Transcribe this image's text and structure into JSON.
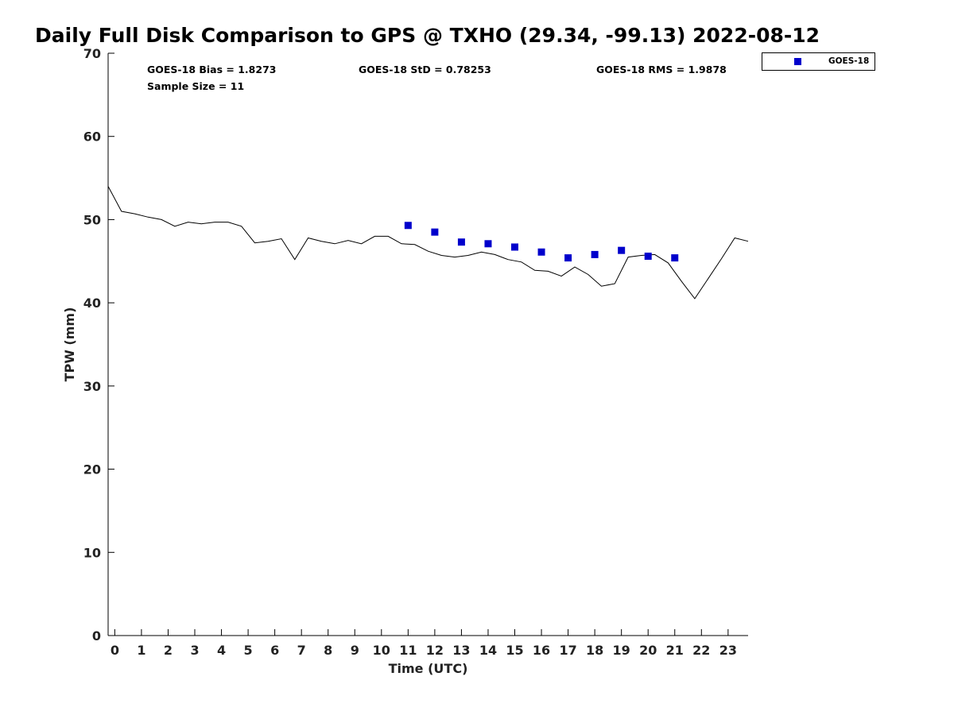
{
  "chart_data": {
    "type": "line",
    "title": "Daily Full Disk Comparison to GPS @ TXHO (29.34, -99.13) 2022-08-12",
    "xlabel": "Time (UTC)",
    "ylabel": "TPW (mm)",
    "xlim": [
      -0.25,
      23.75
    ],
    "ylim": [
      0,
      70
    ],
    "x_ticks": [
      "0",
      "1",
      "2",
      "3",
      "4",
      "5",
      "6",
      "7",
      "8",
      "9",
      "10",
      "11",
      "12",
      "13",
      "14",
      "15",
      "16",
      "17",
      "18",
      "19",
      "20",
      "21",
      "22",
      "23"
    ],
    "y_ticks": [
      "0",
      "10",
      "20",
      "30",
      "40",
      "50",
      "60",
      "70"
    ],
    "grid": false,
    "legend_position": "top-right outside",
    "stats": {
      "bias": "GOES-18 Bias = 1.8273",
      "std": "GOES-18 StD = 0.78253",
      "rms": "GOES-18 RMS = 1.9878",
      "sample": "Sample Size = 11"
    },
    "series": [
      {
        "style": "line",
        "color": "#000000",
        "x": [
          -0.25,
          0.25,
          0.75,
          1.25,
          1.75,
          2.25,
          2.75,
          3.25,
          3.75,
          4.25,
          4.75,
          5.25,
          5.75,
          6.25,
          6.75,
          7.25,
          7.75,
          8.25,
          8.75,
          9.25,
          9.75,
          10.25,
          10.75,
          11.25,
          11.75,
          12.25,
          12.75,
          13.25,
          13.75,
          14.25,
          14.75,
          15.25,
          15.75,
          16.25,
          16.75,
          17.25,
          17.75,
          18.25,
          18.75,
          19.25,
          19.75,
          20.25,
          20.75,
          21.25,
          21.75,
          22.25,
          22.75,
          23.25,
          23.75
        ],
        "y": [
          54.0,
          51.0,
          50.7,
          50.3,
          50.0,
          49.2,
          49.7,
          49.5,
          49.7,
          49.7,
          49.2,
          47.2,
          47.4,
          47.7,
          45.2,
          47.8,
          47.4,
          47.1,
          47.5,
          47.1,
          48.0,
          48.0,
          47.1,
          47.0,
          46.2,
          45.7,
          45.5,
          45.7,
          46.1,
          45.8,
          45.2,
          44.9,
          43.9,
          43.8,
          43.2,
          44.3,
          43.4,
          42.0,
          42.3,
          45.5,
          45.7,
          45.8,
          44.8,
          42.6,
          40.5,
          42.9,
          45.3,
          47.8,
          47.4
        ]
      },
      {
        "name": "GOES-18",
        "style": "square-marker",
        "color": "#0000cc",
        "x": [
          11,
          12,
          13,
          14,
          15,
          16,
          17,
          18,
          19,
          20,
          21
        ],
        "y": [
          49.3,
          48.5,
          47.3,
          47.1,
          46.7,
          46.1,
          45.4,
          45.8,
          46.3,
          45.6,
          45.4
        ]
      }
    ]
  }
}
